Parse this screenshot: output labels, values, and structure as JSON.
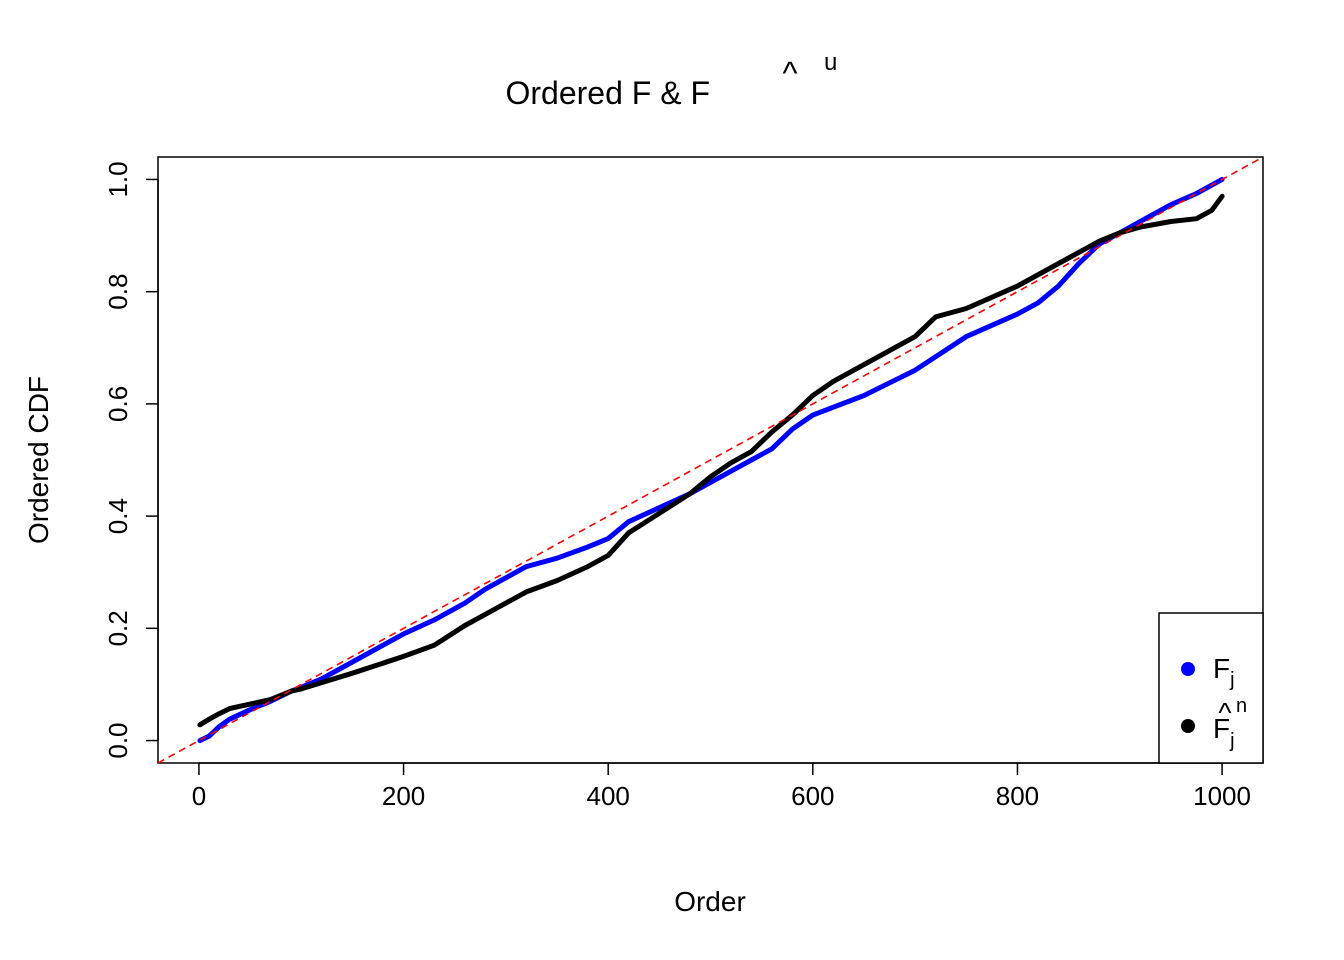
{
  "chart_data": {
    "type": "line",
    "title": "Ordered F & F",
    "title_hat_superscript": "u",
    "xlabel": "Order",
    "ylabel": "Ordered CDF",
    "xlim": [
      -40,
      1040
    ],
    "ylim": [
      -0.04,
      1.04
    ],
    "x_ticks": [
      0,
      200,
      400,
      600,
      800,
      1000
    ],
    "x_tick_labels": [
      "0",
      "200",
      "400",
      "600",
      "800",
      "1000"
    ],
    "y_ticks": [
      0.0,
      0.2,
      0.4,
      0.6,
      0.8,
      1.0
    ],
    "y_tick_labels": [
      "0.0",
      "0.2",
      "0.4",
      "0.6",
      "0.8",
      "1.0"
    ],
    "reference_line": {
      "type": "identity",
      "slope": 0.001,
      "intercept": 0,
      "style": "dashed",
      "color": "#ff0000"
    },
    "legend": {
      "position": "bottom-right",
      "entries": [
        {
          "label": "F",
          "subscript": "j",
          "color": "#0000ff"
        },
        {
          "label": "F",
          "subscript": "j",
          "superscript": "n",
          "hat": true,
          "color": "#000000"
        }
      ]
    },
    "series": [
      {
        "color": "#0000ff",
        "x": [
          1,
          10,
          20,
          30,
          50,
          70,
          90,
          100,
          120,
          150,
          200,
          230,
          260,
          280,
          300,
          320,
          350,
          380,
          400,
          420,
          450,
          480,
          500,
          520,
          540,
          560,
          580,
          600,
          650,
          700,
          750,
          800,
          820,
          840,
          860,
          880,
          900,
          920,
          950,
          975,
          990,
          1000
        ],
        "y": [
          0.0,
          0.008,
          0.025,
          0.038,
          0.055,
          0.07,
          0.088,
          0.095,
          0.11,
          0.14,
          0.19,
          0.215,
          0.245,
          0.27,
          0.29,
          0.31,
          0.325,
          0.345,
          0.36,
          0.39,
          0.415,
          0.44,
          0.46,
          0.48,
          0.5,
          0.52,
          0.555,
          0.58,
          0.615,
          0.66,
          0.72,
          0.76,
          0.78,
          0.81,
          0.85,
          0.885,
          0.905,
          0.925,
          0.955,
          0.975,
          0.99,
          1.0
        ]
      },
      {
        "color": "#000000",
        "x": [
          1,
          10,
          20,
          30,
          50,
          70,
          90,
          100,
          150,
          200,
          230,
          260,
          280,
          300,
          320,
          350,
          380,
          400,
          420,
          450,
          480,
          500,
          520,
          540,
          560,
          580,
          600,
          620,
          650,
          700,
          720,
          750,
          800,
          850,
          880,
          900,
          920,
          950,
          975,
          990,
          1000
        ],
        "y": [
          0.028,
          0.038,
          0.048,
          0.057,
          0.065,
          0.073,
          0.088,
          0.092,
          0.12,
          0.15,
          0.17,
          0.205,
          0.225,
          0.245,
          0.265,
          0.285,
          0.31,
          0.33,
          0.37,
          0.405,
          0.44,
          0.47,
          0.495,
          0.515,
          0.55,
          0.58,
          0.615,
          0.64,
          0.67,
          0.72,
          0.755,
          0.77,
          0.81,
          0.86,
          0.89,
          0.905,
          0.915,
          0.925,
          0.93,
          0.945,
          0.97
        ]
      }
    ]
  }
}
